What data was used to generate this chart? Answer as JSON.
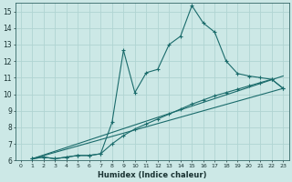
{
  "xlabel": "Humidex (Indice chaleur)",
  "bg_color": "#cce8e6",
  "line_color": "#1a6b6b",
  "grid_color": "#b0d4d2",
  "xlim": [
    -0.5,
    23.5
  ],
  "ylim": [
    6,
    15.5
  ],
  "xticks": [
    0,
    1,
    2,
    3,
    4,
    5,
    6,
    7,
    8,
    9,
    10,
    11,
    12,
    13,
    14,
    15,
    16,
    17,
    18,
    19,
    20,
    21,
    22,
    23
  ],
  "yticks": [
    6,
    7,
    8,
    9,
    10,
    11,
    12,
    13,
    14,
    15
  ],
  "series_spiky": {
    "x": [
      1,
      2,
      3,
      4,
      5,
      6,
      7,
      8,
      9,
      10,
      11,
      12,
      13,
      14,
      15,
      16,
      17,
      18,
      19,
      20,
      21,
      22,
      23
    ],
    "y": [
      6.1,
      6.2,
      6.1,
      6.2,
      6.3,
      6.3,
      6.4,
      8.3,
      12.65,
      10.1,
      11.3,
      11.5,
      13.0,
      13.5,
      15.35,
      14.3,
      13.75,
      12.0,
      11.25,
      11.1,
      11.0,
      10.9,
      10.35
    ]
  },
  "series_smooth": {
    "x": [
      1,
      2,
      3,
      4,
      5,
      6,
      7,
      8,
      9,
      10,
      11,
      12,
      13,
      14,
      15,
      16,
      17,
      18,
      19,
      20,
      21,
      22,
      23
    ],
    "y": [
      6.1,
      6.2,
      6.1,
      6.2,
      6.3,
      6.3,
      6.4,
      7.0,
      7.5,
      7.9,
      8.2,
      8.5,
      8.8,
      9.1,
      9.4,
      9.65,
      9.9,
      10.1,
      10.3,
      10.5,
      10.7,
      10.9,
      10.35
    ]
  },
  "line1": {
    "x": [
      1,
      23
    ],
    "y": [
      6.1,
      10.35
    ]
  },
  "line2": {
    "x": [
      1,
      23
    ],
    "y": [
      6.1,
      11.1
    ]
  }
}
